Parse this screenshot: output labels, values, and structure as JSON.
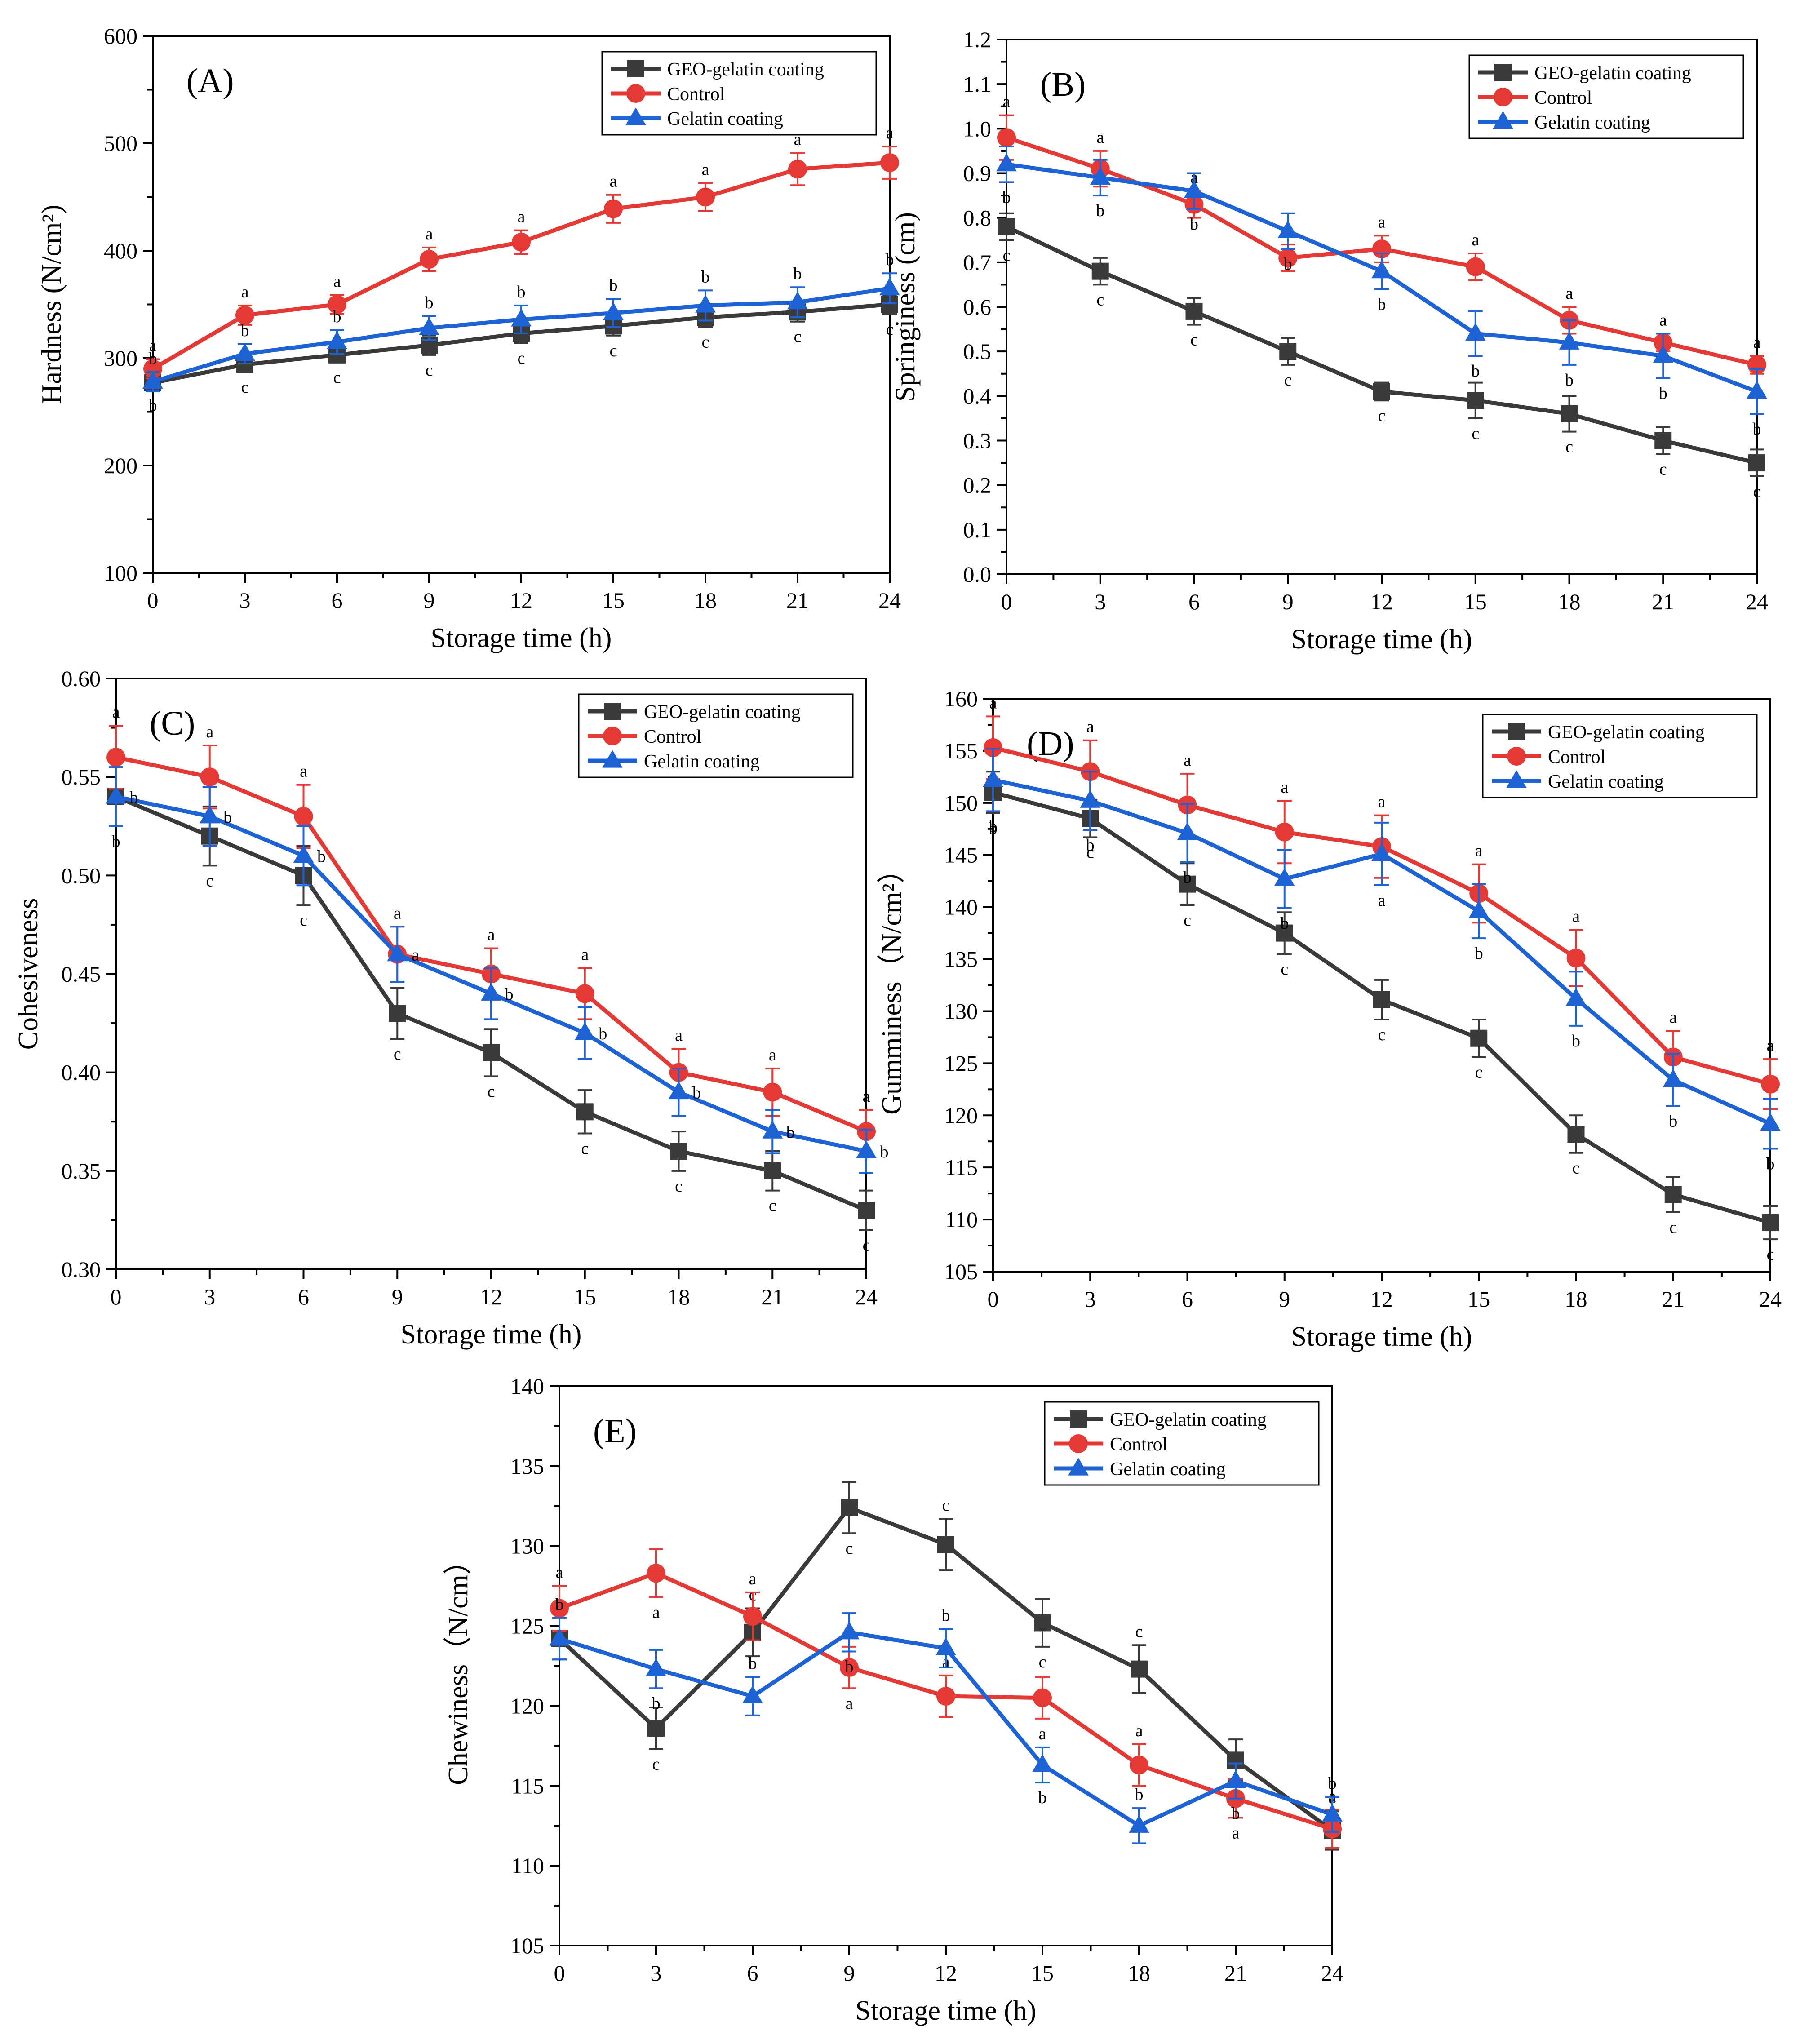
{
  "colors": {
    "GEO-gelatin coating": "#3a3a3a",
    "Control": "#e53935",
    "Gelatin coating": "#1e63d6"
  },
  "legend_labels": [
    "GEO-gelatin coating",
    "Control",
    "Gelatin coating"
  ],
  "chart_data": [
    {
      "type": "line",
      "panel": "(A)",
      "xlabel": "Storage time (h)",
      "ylabel": "Hardness (N/cm²)",
      "ylim": [
        100,
        600
      ],
      "yticks": [
        100,
        200,
        300,
        400,
        500,
        600
      ],
      "ytick_labels": [
        "100",
        "200",
        "300",
        "400",
        "500",
        "600"
      ],
      "legend": "top-right",
      "x": [
        0,
        3,
        6,
        9,
        12,
        15,
        18,
        21,
        24
      ],
      "series": [
        {
          "name": "GEO-gelatin coating",
          "values": [
            277,
            294,
            303,
            312,
            323,
            330,
            338,
            343,
            350
          ],
          "err": [
            7,
            7,
            7,
            9,
            9,
            9,
            9,
            9,
            9
          ],
          "letters": [
            "b",
            "c",
            "c",
            "c",
            "c",
            "c",
            "c",
            "c",
            "c"
          ],
          "letter_pos": "below"
        },
        {
          "name": "Control",
          "values": [
            290,
            340,
            350,
            392,
            408,
            439,
            450,
            476,
            482
          ],
          "err": [
            9,
            9,
            9,
            11,
            11,
            13,
            13,
            15,
            15
          ],
          "letters": [
            "a",
            "a",
            "a",
            "a",
            "a",
            "a",
            "a",
            "a",
            "a"
          ],
          "letter_pos": "above"
        },
        {
          "name": "Gelatin coating",
          "values": [
            278,
            304,
            315,
            328,
            336,
            342,
            349,
            352,
            365
          ],
          "err": [
            9,
            9,
            11,
            11,
            13,
            13,
            14,
            14,
            14
          ],
          "letters": [
            "b",
            "b",
            "b",
            "b",
            "b",
            "b",
            "b",
            "b",
            "b"
          ],
          "letter_pos": "above"
        }
      ]
    },
    {
      "type": "line",
      "panel": "(B)",
      "xlabel": "Storage time (h)",
      "ylabel": "Springiness (cm)",
      "ylim": [
        0.0,
        1.2
      ],
      "yticks": [
        0.0,
        0.1,
        0.2,
        0.3,
        0.4,
        0.5,
        0.6,
        0.7,
        0.8,
        0.9,
        1.0,
        1.1,
        1.2
      ],
      "ytick_labels": [
        "0.0",
        "0.1",
        "0.2",
        "0.3",
        "0.4",
        "0.5",
        "0.6",
        "0.7",
        "0.8",
        "0.9",
        "1.0",
        "1.1",
        "1.2"
      ],
      "legend": "top-right",
      "x": [
        0,
        3,
        6,
        9,
        12,
        15,
        18,
        21,
        24
      ],
      "series": [
        {
          "name": "GEO-gelatin coating",
          "values": [
            0.78,
            0.68,
            0.59,
            0.5,
            0.41,
            0.39,
            0.36,
            0.3,
            0.25
          ],
          "err": [
            0.03,
            0.03,
            0.03,
            0.03,
            0.02,
            0.04,
            0.04,
            0.03,
            0.03
          ],
          "letters": [
            "c",
            "c",
            "c",
            "c",
            "c",
            "c",
            "c",
            "c",
            "c"
          ],
          "letter_pos": "below"
        },
        {
          "name": "Control",
          "values": [
            0.98,
            0.91,
            0.83,
            0.71,
            0.73,
            0.69,
            0.57,
            0.52,
            0.47
          ],
          "err": [
            0.05,
            0.04,
            0.03,
            0.03,
            0.03,
            0.03,
            0.03,
            0.02,
            0.02
          ],
          "letters": [
            "a",
            "a",
            "a",
            "a",
            "a",
            "a",
            "a",
            "a",
            "a"
          ],
          "letter_pos": "above"
        },
        {
          "name": "Gelatin coating",
          "values": [
            0.92,
            0.89,
            0.86,
            0.77,
            0.68,
            0.54,
            0.52,
            0.49,
            0.41
          ],
          "err": [
            0.04,
            0.04,
            0.04,
            0.04,
            0.04,
            0.05,
            0.05,
            0.05,
            0.05
          ],
          "letters": [
            "b",
            "b",
            "b",
            "b",
            "b",
            "b",
            "b",
            "b",
            "b"
          ],
          "letter_pos": "below"
        }
      ]
    },
    {
      "type": "line",
      "panel": "(C)",
      "xlabel": "Storage time (h)",
      "ylabel": "Cohesiveness",
      "ylim": [
        0.3,
        0.6
      ],
      "yticks": [
        0.3,
        0.35,
        0.4,
        0.45,
        0.5,
        0.55,
        0.6
      ],
      "ytick_labels": [
        "0.30",
        "0.35",
        "0.40",
        "0.45",
        "0.50",
        "0.55",
        "0.60"
      ],
      "legend": "top-right",
      "x": [
        0,
        3,
        6,
        9,
        12,
        15,
        18,
        21,
        24
      ],
      "series": [
        {
          "name": "GEO-gelatin coating",
          "values": [
            0.54,
            0.52,
            0.5,
            0.43,
            0.41,
            0.38,
            0.36,
            0.35,
            0.33
          ],
          "err": [
            0.015,
            0.015,
            0.015,
            0.013,
            0.012,
            0.011,
            0.01,
            0.01,
            0.01
          ],
          "letters": [
            "b",
            "c",
            "c",
            "c",
            "c",
            "c",
            "c",
            "c",
            "c"
          ],
          "letter_pos": "below"
        },
        {
          "name": "Control",
          "values": [
            0.56,
            0.55,
            0.53,
            0.46,
            0.45,
            0.44,
            0.4,
            0.39,
            0.37
          ],
          "err": [
            0.016,
            0.016,
            0.016,
            0.014,
            0.013,
            0.013,
            0.012,
            0.012,
            0.011
          ],
          "letters": [
            "a",
            "a",
            "a",
            "a",
            "a",
            "a",
            "a",
            "a",
            "a"
          ],
          "letter_pos": "above"
        },
        {
          "name": "Gelatin coating",
          "values": [
            0.54,
            0.53,
            0.51,
            0.46,
            0.44,
            0.42,
            0.39,
            0.37,
            0.36
          ],
          "err": [
            0.015,
            0.015,
            0.015,
            0.014,
            0.013,
            0.013,
            0.012,
            0.011,
            0.011
          ],
          "letters": [
            "b",
            "b",
            "b",
            "a",
            "b",
            "b",
            "b",
            "b",
            "b"
          ],
          "letter_pos": "right"
        }
      ]
    },
    {
      "type": "line",
      "panel": "(D)",
      "xlabel": "Storage time (h)",
      "ylabel": "Gumminess（N/cm²）",
      "ylim": [
        105,
        160
      ],
      "yticks": [
        105,
        110,
        115,
        120,
        125,
        130,
        135,
        140,
        145,
        150,
        155,
        160
      ],
      "ytick_labels": [
        "105",
        "110",
        "115",
        "120",
        "125",
        "130",
        "135",
        "140",
        "145",
        "150",
        "155",
        "160"
      ],
      "legend": "top-right",
      "x": [
        0,
        3,
        6,
        9,
        12,
        15,
        18,
        21,
        24
      ],
      "series": [
        {
          "name": "GEO-gelatin coating",
          "values": [
            151.0,
            148.5,
            142.2,
            137.5,
            131.1,
            127.4,
            118.2,
            112.4,
            109.7
          ],
          "err": [
            2.0,
            1.8,
            2.0,
            2.0,
            1.9,
            1.8,
            1.8,
            1.7,
            1.6
          ],
          "letters": [
            "b",
            "c",
            "c",
            "c",
            "c",
            "c",
            "c",
            "c",
            "c"
          ],
          "letter_pos": "below"
        },
        {
          "name": "Control",
          "values": [
            155.3,
            153.0,
            149.8,
            147.2,
            145.8,
            141.3,
            135.1,
            125.6,
            123.0
          ],
          "err": [
            3.0,
            3.0,
            3.0,
            3.0,
            3.0,
            2.8,
            2.7,
            2.5,
            2.4
          ],
          "letters": [
            "a",
            "a",
            "a",
            "a",
            "a",
            "a",
            "a",
            "a",
            "a"
          ],
          "letter_pos": "above"
        },
        {
          "name": "Gelatin coating",
          "values": [
            152.2,
            150.2,
            147.1,
            142.7,
            145.1,
            139.6,
            131.2,
            123.4,
            119.2
          ],
          "err": [
            3.0,
            2.8,
            2.8,
            2.8,
            3.0,
            2.6,
            2.6,
            2.5,
            2.4
          ],
          "letters": [
            "b",
            "b",
            "b",
            "b",
            "a",
            "b",
            "b",
            "b",
            "b"
          ],
          "letter_pos": "below"
        }
      ]
    },
    {
      "type": "line",
      "panel": "(E)",
      "xlabel": "Storage time (h)",
      "ylabel": "Chewiness（N/cm）",
      "ylim": [
        105,
        140
      ],
      "yticks": [
        105,
        110,
        115,
        120,
        125,
        130,
        135,
        140
      ],
      "ytick_labels": [
        "105",
        "110",
        "115",
        "120",
        "125",
        "130",
        "135",
        "140"
      ],
      "legend": "top-right",
      "x": [
        0,
        3,
        6,
        9,
        12,
        15,
        18,
        21,
        24
      ],
      "series": [
        {
          "name": "GEO-gelatin coating",
          "values": [
            124.2,
            118.6,
            124.6,
            132.4,
            130.1,
            125.2,
            122.3,
            116.6,
            112.2
          ],
          "err": [
            1.3,
            1.3,
            1.5,
            1.6,
            1.6,
            1.5,
            1.5,
            1.3,
            1.2
          ],
          "letters": [
            "b",
            "c",
            "c",
            "c",
            "c",
            "c",
            "c",
            "c",
            "a"
          ],
          "letter_pos": "mixed"
        },
        {
          "name": "Control",
          "values": [
            126.1,
            128.3,
            125.6,
            122.4,
            120.6,
            120.5,
            116.3,
            114.2,
            112.3
          ],
          "err": [
            1.4,
            1.5,
            1.5,
            1.3,
            1.3,
            1.3,
            1.3,
            1.2,
            1.2
          ],
          "letters": [
            "a",
            "a",
            "a",
            "a",
            "a",
            "a",
            "a",
            "a",
            "a"
          ],
          "letter_pos": "mixed"
        },
        {
          "name": "Gelatin coating",
          "values": [
            124.2,
            122.3,
            120.6,
            124.6,
            123.6,
            116.3,
            112.5,
            115.3,
            113.2
          ],
          "err": [
            1.3,
            1.2,
            1.2,
            1.2,
            1.2,
            1.1,
            1.1,
            1.1,
            1.1
          ],
          "letters": [
            "b",
            "b",
            "b",
            "b",
            "b",
            "b",
            "b",
            "b",
            "b"
          ],
          "letter_pos": "mixed"
        }
      ]
    }
  ]
}
